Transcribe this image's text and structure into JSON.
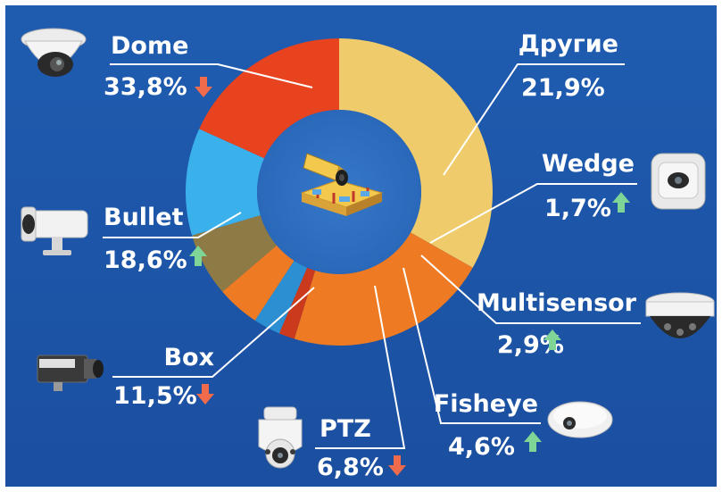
{
  "chart_data": {
    "type": "pie",
    "variant": "donut",
    "title": "",
    "slices": [
      {
        "name": "Dome",
        "value": 33.8,
        "value_label": "33,8%",
        "trend": "down",
        "color": "#EFCB6B"
      },
      {
        "name": "Другие",
        "value": 21.9,
        "value_label": "21,9%",
        "trend": "none",
        "color": "#EE7B23"
      },
      {
        "name": "Wedge",
        "value": 1.7,
        "value_label": "1,7%",
        "trend": "up",
        "color": "#CC3A1E"
      },
      {
        "name": "Multisensor",
        "value": 2.9,
        "value_label": "2,9%",
        "trend": "up",
        "color": "#2B8FD1"
      },
      {
        "name": "Fisheye",
        "value": 4.6,
        "value_label": "4,6%",
        "trend": "up",
        "color": "#EE7B23"
      },
      {
        "name": "PTZ",
        "value": 6.8,
        "value_label": "6,8%",
        "trend": "down",
        "color": "#8E7A45"
      },
      {
        "name": "Box",
        "value": 11.5,
        "value_label": "11,5%",
        "trend": "down",
        "color": "#3BB1EC"
      },
      {
        "name": "Bullet",
        "value": 18.6,
        "value_label": "18,6%",
        "trend": "up",
        "color": "#E8431F"
      }
    ]
  },
  "colors": {
    "background_top": "#1F5CB0",
    "background_bottom": "#1B4FA0",
    "trend_up": "#7ED596",
    "trend_down": "#F06B4C",
    "hole": "#2C6CBF"
  },
  "icons": {
    "center": "surveillance-camera-building-icon",
    "Dome": "dome-camera-icon",
    "Другие": "",
    "Wedge": "wedge-camera-icon",
    "Multisensor": "multisensor-camera-icon",
    "Fisheye": "fisheye-camera-icon",
    "PTZ": "ptz-camera-icon",
    "Box": "box-camera-icon",
    "Bullet": "bullet-camera-icon"
  }
}
